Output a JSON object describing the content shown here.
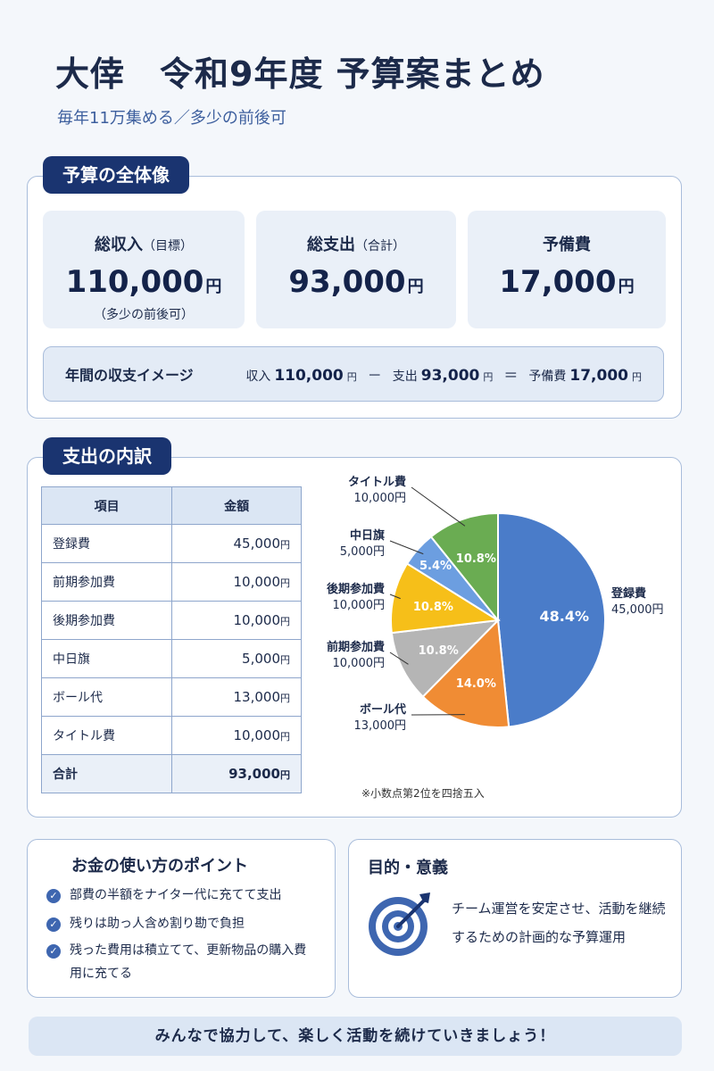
{
  "header": {
    "title": "大倖　令和9年度 予算案まとめ",
    "subtitle": "毎年11万集める／多少の前後可"
  },
  "overview": {
    "section_label": "予算の全体像",
    "income": {
      "label": "総収入",
      "label_sub": "（目標）",
      "value": "110,000",
      "unit": "円",
      "note": "（多少の前後可）"
    },
    "expense": {
      "label": "総支出",
      "label_sub": "（合計）",
      "value": "93,000",
      "unit": "円"
    },
    "reserve": {
      "label": "予備費",
      "value": "17,000",
      "unit": "円"
    },
    "flow": {
      "label": "年間の収支イメージ",
      "income_label": "収入",
      "income_value": "110,000",
      "minus": "－",
      "expense_label": "支出",
      "expense_value": "93,000",
      "equals": "＝",
      "reserve_label": "予備費",
      "reserve_value": "17,000",
      "unit": "円"
    }
  },
  "breakdown": {
    "section_label": "支出の内訳",
    "table": {
      "headers": [
        "項目",
        "金額"
      ],
      "rows": [
        {
          "item": "登録費",
          "amount": "45,000"
        },
        {
          "item": "前期参加費",
          "amount": "10,000"
        },
        {
          "item": "後期参加費",
          "amount": "10,000"
        },
        {
          "item": "中日旗",
          "amount": "5,000"
        },
        {
          "item": "ボール代",
          "amount": "13,000"
        },
        {
          "item": "タイトル費",
          "amount": "10,000"
        }
      ],
      "total": {
        "item": "合計",
        "amount": "93,000"
      },
      "unit": "円"
    },
    "note": "※小数点第2位を四捨五入"
  },
  "chart_data": {
    "type": "pie",
    "slices": [
      {
        "label": "登録費",
        "amount_label": "45,000円",
        "value": 45000,
        "percent": "48.4%",
        "color": "#4a7cc9"
      },
      {
        "label": "ボール代",
        "amount_label": "13,000円",
        "value": 13000,
        "percent": "14.0%",
        "color": "#f08c34"
      },
      {
        "label": "前期参加費",
        "amount_label": "10,000円",
        "value": 10000,
        "percent": "10.8%",
        "color": "#b5b5b5"
      },
      {
        "label": "後期参加費",
        "amount_label": "10,000円",
        "value": 10000,
        "percent": "10.8%",
        "color": "#f6bf19"
      },
      {
        "label": "中日旗",
        "amount_label": "5,000円",
        "value": 5000,
        "percent": "5.4%",
        "color": "#6c9ee0"
      },
      {
        "label": "タイトル費",
        "amount_label": "10,000円",
        "value": 10000,
        "percent": "10.8%",
        "color": "#6aac52"
      }
    ]
  },
  "points": {
    "title": "お金の使い方のポイント",
    "items": [
      "部費の半額をナイター代に充てて支出",
      "残りは助っ人含め割り勘で負担",
      "残った費用は積立てて、更新物品の購入費用に充てる"
    ]
  },
  "purpose": {
    "title": "目的・意義",
    "text": "チーム運営を安定させ、活動を継続するための計画的な予算運用"
  },
  "footer": {
    "message": "みんなで協力して、楽しく活動を続けていきましょう！"
  },
  "colors": {
    "navy": "#1a3470",
    "panel": "#eaf0f8",
    "border": "#a9bddb"
  }
}
